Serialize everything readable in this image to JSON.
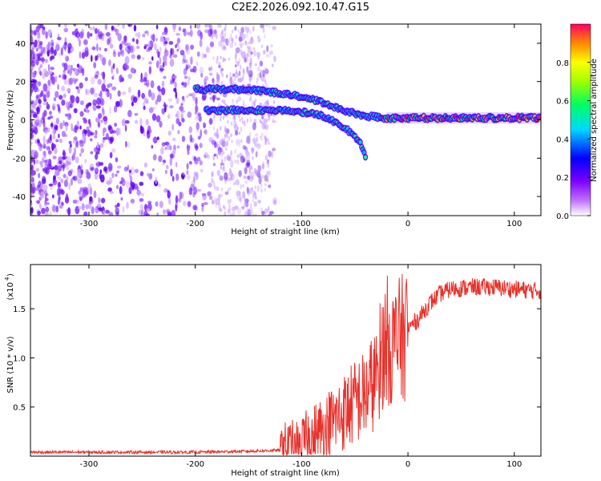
{
  "title": "C2E2.2026.092.10.47.G15",
  "chart_data": [
    {
      "type": "heatmap",
      "name": "spectrogram",
      "xlabel": "Height of straight line (km)",
      "ylabel": "Frequency (Hz)",
      "xlim": [
        -355,
        125
      ],
      "ylim": [
        -50,
        50
      ],
      "xticks": [
        -300,
        -200,
        -100,
        0,
        100
      ],
      "yticks": [
        -40,
        -20,
        0,
        20,
        40
      ],
      "colorbar": {
        "label": "Normalized spectral amplitude",
        "range": [
          0,
          1
        ],
        "ticks": [
          "0.0",
          "0.2",
          "0.4",
          "0.6",
          "0.8"
        ],
        "colors": [
          "#ffffff",
          "#8800ff",
          "#0000ff",
          "#00e0ff",
          "#00ff00",
          "#ffff00",
          "#ff8800",
          "#ff0044"
        ]
      },
      "features": [
        {
          "name": "main-signal",
          "points": [
            [
              -200,
              16
            ],
            [
              -150,
              16
            ],
            [
              -120,
              14
            ],
            [
              -100,
              12
            ],
            [
              -80,
              9
            ],
            [
              -60,
              5
            ],
            [
              -40,
              2
            ],
            [
              -20,
              1
            ],
            [
              0,
              1
            ],
            [
              50,
              1
            ],
            [
              125,
              1
            ]
          ]
        },
        {
          "name": "secondary-track",
          "points": [
            [
              -190,
              5
            ],
            [
              -160,
              5
            ],
            [
              -120,
              5
            ],
            [
              -100,
              4
            ],
            [
              -80,
              2
            ],
            [
              -65,
              -2
            ],
            [
              -50,
              -8
            ],
            [
              -42,
              -15
            ],
            [
              -40,
              -20
            ]
          ]
        }
      ]
    },
    {
      "type": "line",
      "name": "snr",
      "xlabel": "Height of straight line (km)",
      "ylabel": "SNR (10 * v/v)",
      "scale_label": "(x10",
      "scale_exponent": "4",
      "xlim": [
        -355,
        125
      ],
      "ylim": [
        0,
        1.95
      ],
      "xticks": [
        -300,
        -200,
        -100,
        0,
        100
      ],
      "yticks": [
        0.5,
        1.0,
        1.5
      ],
      "ytick_labels": [
        "0.5",
        "1.0",
        "1.5"
      ],
      "color": "#e8302a",
      "series": [
        {
          "x": [
            -355,
            -300,
            -250,
            -200,
            -150,
            -120,
            -100,
            -90,
            -80,
            -70,
            -60,
            -50,
            -40,
            -30,
            -25,
            -20,
            -15,
            -10,
            -5,
            0,
            10,
            20,
            30,
            40,
            60,
            80,
            100,
            125
          ],
          "y": [
            0.04,
            0.04,
            0.04,
            0.04,
            0.05,
            0.06,
            0.12,
            0.22,
            0.28,
            0.36,
            0.45,
            0.55,
            0.62,
            0.8,
            1.05,
            1.2,
            1.1,
            1.15,
            1.2,
            1.3,
            1.4,
            1.55,
            1.65,
            1.7,
            1.72,
            1.72,
            1.7,
            1.68
          ]
        }
      ]
    }
  ]
}
